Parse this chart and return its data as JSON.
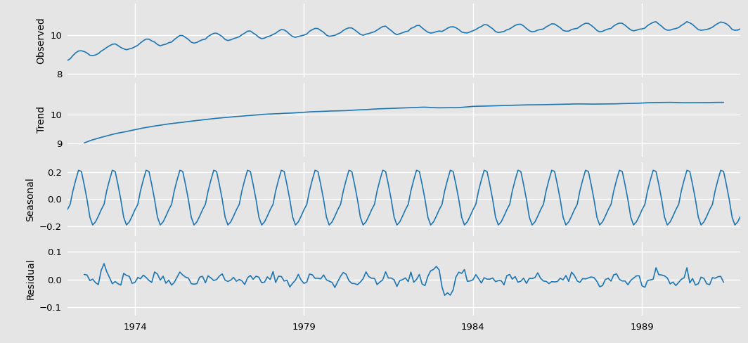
{
  "line_color": "#1f77b4",
  "bg_color": "#e5e5e5",
  "fig_bg_color": "#e5e5e5",
  "line_width": 1.2,
  "ylabel_fontsize": 10,
  "tick_fontsize": 9.5,
  "xtick_years": [
    1974,
    1979,
    1984,
    1989
  ],
  "subplot_labels": [
    "Observed",
    "Trend",
    "Seasonal",
    "Residual"
  ],
  "grid_color": "#ffffff",
  "grid_linewidth": 1.0,
  "observed_yticks": [
    8,
    10
  ],
  "trend_yticks": [
    9,
    10
  ],
  "seasonal_yticks": [
    -0.2,
    0.0,
    0.2
  ],
  "residual_yticks": [
    -0.1,
    0.0,
    0.1
  ],
  "observed_ylim": [
    7.85,
    11.6
  ],
  "trend_ylim": [
    8.55,
    11.1
  ],
  "seasonal_ylim": [
    -0.275,
    0.275
  ],
  "residual_ylim": [
    -0.13,
    0.135
  ],
  "figsize": [
    10.64,
    4.88
  ],
  "dpi": 100
}
